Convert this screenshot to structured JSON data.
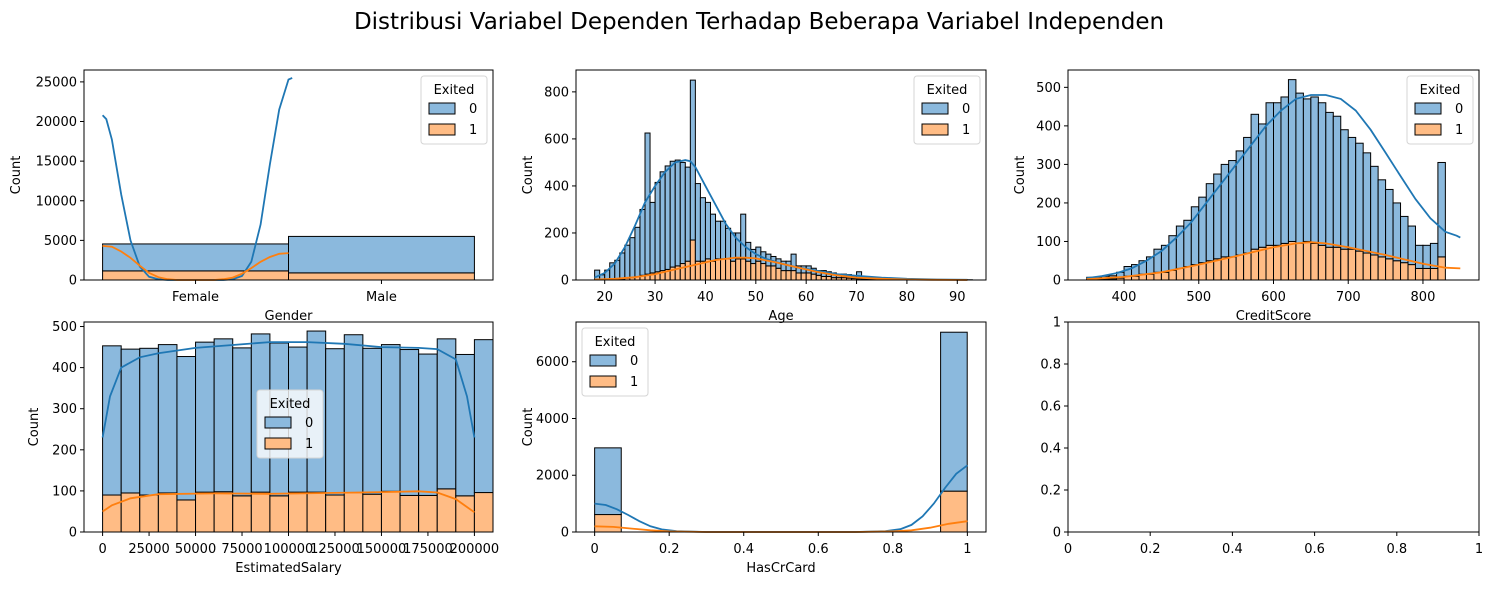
{
  "suptitle": "Distribusi Variabel Dependen Terhadap Beberapa Variabel Independen",
  "colors": {
    "exited_0": "#8bb9dd",
    "exited_1": "#ffbc85",
    "kde_0": "#1f77b4",
    "kde_1": "#ff7f0e"
  },
  "chart_data": [
    {
      "type": "bar",
      "subplot": "gender",
      "xlabel": "Gender",
      "ylabel": "Count",
      "categories": [
        "Female",
        "Male"
      ],
      "ylim": [
        0,
        26500
      ],
      "yticks": [
        0,
        5000,
        10000,
        15000,
        20000,
        25000
      ],
      "multiple": "stack",
      "series": [
        {
          "name": "0",
          "values": [
            3400,
            4600
          ]
        },
        {
          "name": "1",
          "values": [
            1150,
            900
          ]
        }
      ],
      "kde": [
        {
          "name": "0",
          "x": [
            -0.5,
            -0.48,
            -0.45,
            -0.4,
            -0.35,
            -0.3,
            -0.25,
            -0.2,
            -0.15,
            -0.1,
            -0.05,
            0.0,
            0.05,
            0.1,
            0.15,
            0.2,
            0.25,
            0.3,
            0.35,
            0.4,
            0.45,
            0.5,
            0.52
          ],
          "y": [
            20800,
            20300,
            17700,
            10800,
            5000,
            1700,
            400,
            100,
            0,
            0,
            0,
            0,
            0,
            0,
            0,
            100,
            500,
            2300,
            7000,
            14600,
            21500,
            25300,
            25500
          ]
        },
        {
          "name": "1",
          "x": [
            -0.5,
            -0.45,
            -0.4,
            -0.35,
            -0.3,
            -0.25,
            -0.2,
            -0.15,
            -0.1,
            0.0,
            0.1,
            0.15,
            0.2,
            0.25,
            0.3,
            0.35,
            0.4,
            0.45,
            0.5
          ],
          "y": [
            4300,
            4200,
            3600,
            2800,
            1800,
            900,
            350,
            100,
            0,
            0,
            0,
            100,
            300,
            800,
            1500,
            2300,
            2900,
            3300,
            3400
          ]
        }
      ],
      "legend": {
        "title": "Exited",
        "entries": [
          "0",
          "1"
        ],
        "loc": "upper right"
      }
    },
    {
      "type": "bar",
      "subplot": "age",
      "xlabel": "Age",
      "ylabel": "Count",
      "xlim": [
        14.3,
        95.7
      ],
      "xticks": [
        20,
        30,
        40,
        50,
        60,
        70,
        80,
        90
      ],
      "ylim": [
        0,
        893
      ],
      "yticks": [
        0,
        200,
        400,
        600,
        800
      ],
      "multiple": "stack",
      "bin_start": 18,
      "bin_width": 1,
      "series": [
        {
          "name": "0",
          "values": [
            40,
            20,
            40,
            70,
            80,
            110,
            140,
            170,
            210,
            280,
            600,
            300,
            380,
            420,
            440,
            450,
            450,
            430,
            400,
            680,
            330,
            270,
            240,
            200,
            160,
            160,
            130,
            120,
            110,
            190,
            80,
            60,
            60,
            50,
            50,
            40,
            40,
            40,
            40,
            70,
            30,
            30,
            30,
            25,
            20,
            25,
            20,
            20,
            15,
            15,
            15,
            10,
            30,
            10,
            8,
            8,
            7,
            6,
            5,
            4,
            4,
            3,
            3,
            3,
            2,
            2,
            2,
            1,
            1,
            1,
            1,
            1,
            1,
            1,
            1
          ]
        },
        {
          "name": "1",
          "values": [
            2,
            2,
            2,
            3,
            4,
            5,
            8,
            10,
            14,
            20,
            25,
            30,
            35,
            40,
            45,
            55,
            60,
            70,
            80,
            170,
            80,
            80,
            90,
            80,
            90,
            90,
            90,
            80,
            90,
            90,
            80,
            70,
            80,
            70,
            60,
            60,
            50,
            40,
            40,
            40,
            30,
            30,
            30,
            25,
            20,
            15,
            15,
            10,
            10,
            10,
            8,
            6,
            5,
            4,
            3,
            3,
            2,
            2,
            2,
            1,
            1,
            1,
            1,
            1,
            0,
            0,
            0,
            0,
            0,
            0,
            0,
            0,
            0,
            0,
            0
          ]
        }
      ],
      "kde": [
        {
          "name": "0",
          "x": [
            18,
            20,
            22,
            24,
            26,
            28,
            30,
            32,
            34,
            36,
            37,
            38,
            40,
            42,
            44,
            46,
            48,
            50,
            52,
            55,
            58,
            62,
            66,
            70,
            75,
            80,
            86,
            92
          ],
          "y": [
            10,
            30,
            70,
            140,
            230,
            330,
            400,
            460,
            500,
            510,
            505,
            480,
            400,
            320,
            240,
            180,
            140,
            110,
            90,
            70,
            55,
            40,
            25,
            18,
            10,
            5,
            2,
            1
          ]
        },
        {
          "name": "1",
          "x": [
            18,
            22,
            26,
            30,
            34,
            38,
            42,
            46,
            48,
            50,
            54,
            58,
            62,
            66,
            70,
            75,
            80,
            85,
            92
          ],
          "y": [
            2,
            5,
            12,
            25,
            45,
            65,
            85,
            95,
            95,
            92,
            75,
            55,
            35,
            20,
            10,
            5,
            2,
            1,
            0
          ]
        }
      ],
      "legend": {
        "title": "Exited",
        "entries": [
          "0",
          "1"
        ],
        "loc": "upper right"
      }
    },
    {
      "type": "bar",
      "subplot": "creditscore",
      "xlabel": "CreditScore",
      "ylabel": "Count",
      "xlim": [
        325,
        875
      ],
      "xticks": [
        400,
        500,
        600,
        700,
        800
      ],
      "ylim": [
        0,
        545
      ],
      "yticks": [
        0,
        100,
        200,
        300,
        400,
        500
      ],
      "multiple": "stack",
      "bin_start": 350,
      "bin_width": 10,
      "series": [
        {
          "name": "0",
          "values": [
            5,
            5,
            7,
            8,
            15,
            25,
            30,
            35,
            45,
            60,
            70,
            90,
            110,
            120,
            150,
            170,
            200,
            220,
            240,
            250,
            270,
            300,
            350,
            320,
            370,
            370,
            380,
            420,
            390,
            370,
            380,
            370,
            350,
            340,
            310,
            290,
            280,
            260,
            230,
            200,
            180,
            150,
            120,
            100,
            60,
            60,
            65,
            245
          ]
        },
        {
          "name": "1",
          "values": [
            2,
            2,
            3,
            3,
            5,
            10,
            10,
            15,
            15,
            20,
            20,
            25,
            30,
            35,
            40,
            45,
            50,
            55,
            60,
            60,
            65,
            70,
            80,
            85,
            90,
            90,
            95,
            100,
            95,
            100,
            95,
            90,
            85,
            85,
            80,
            80,
            75,
            70,
            65,
            60,
            55,
            50,
            45,
            40,
            30,
            30,
            30,
            60
          ]
        }
      ],
      "kde": [
        {
          "name": "0",
          "x": [
            350,
            370,
            390,
            410,
            430,
            450,
            470,
            490,
            510,
            530,
            550,
            570,
            590,
            610,
            630,
            650,
            670,
            690,
            710,
            730,
            750,
            770,
            790,
            810,
            830,
            845,
            850
          ],
          "y": [
            5,
            10,
            18,
            30,
            50,
            75,
            110,
            150,
            200,
            250,
            300,
            350,
            400,
            440,
            470,
            480,
            480,
            470,
            440,
            390,
            330,
            270,
            210,
            160,
            125,
            115,
            110
          ]
        },
        {
          "name": "1",
          "x": [
            350,
            400,
            450,
            500,
            550,
            600,
            630,
            650,
            670,
            700,
            750,
            800,
            830,
            850
          ],
          "y": [
            2,
            8,
            20,
            40,
            62,
            85,
            95,
            98,
            95,
            85,
            65,
            42,
            32,
            30
          ]
        }
      ],
      "legend": {
        "title": "Exited",
        "entries": [
          "0",
          "1"
        ],
        "loc": "upper right"
      }
    },
    {
      "type": "bar",
      "subplot": "estimatedsalary",
      "xlabel": "EstimatedSalary",
      "ylabel": "Count",
      "xlim": [
        -10000,
        210000
      ],
      "xticks": [
        0,
        25000,
        50000,
        75000,
        100000,
        125000,
        150000,
        175000,
        200000
      ],
      "ylim": [
        0,
        511
      ],
      "yticks": [
        0,
        100,
        200,
        300,
        400,
        500
      ],
      "multiple": "stack",
      "bin_start": 0,
      "bin_width": 10000,
      "series": [
        {
          "name": "0",
          "values": [
            363,
            350,
            357,
            361,
            349,
            365,
            372,
            360,
            385,
            372,
            353,
            392,
            356,
            384,
            355,
            357,
            355,
            344,
            365,
            344,
            372
          ]
        },
        {
          "name": "1",
          "values": [
            90,
            95,
            90,
            95,
            78,
            97,
            98,
            88,
            97,
            88,
            97,
            97,
            90,
            96,
            92,
            99,
            89,
            89,
            105,
            88,
            96
          ]
        }
      ],
      "kde": [
        {
          "name": "0",
          "x": [
            0,
            4000,
            10000,
            20000,
            30000,
            50000,
            70000,
            90000,
            110000,
            130000,
            150000,
            170000,
            180000,
            190000,
            196000,
            200000
          ],
          "y": [
            230,
            330,
            400,
            425,
            435,
            448,
            455,
            462,
            462,
            458,
            450,
            448,
            445,
            420,
            330,
            230
          ]
        },
        {
          "name": "1",
          "x": [
            0,
            5000,
            15000,
            30000,
            60000,
            90000,
            120000,
            150000,
            170000,
            180000,
            190000,
            200000
          ],
          "y": [
            50,
            65,
            82,
            92,
            94,
            93,
            95,
            97,
            99,
            96,
            80,
            48
          ]
        }
      ],
      "legend": {
        "title": "Exited",
        "entries": [
          "0",
          "1"
        ],
        "loc": "center"
      }
    },
    {
      "type": "bar",
      "subplot": "hascrcard",
      "xlabel": "HasCrCard",
      "ylabel": "Count",
      "xlim": [
        -0.05,
        1.05
      ],
      "xticks": [
        0.0,
        0.2,
        0.4,
        0.6,
        0.8,
        1.0
      ],
      "ylim": [
        0,
        7400
      ],
      "yticks": [
        0,
        2000,
        4000,
        6000
      ],
      "multiple": "stack",
      "bin_start": 0,
      "bin_width": 0.0714,
      "series": [
        {
          "name": "0",
          "values": [
            2350,
            0,
            0,
            0,
            0,
            0,
            0,
            0,
            0,
            0,
            0,
            0,
            0,
            5600
          ]
        },
        {
          "name": "1",
          "values": [
            615,
            0,
            0,
            0,
            0,
            0,
            0,
            0,
            0,
            0,
            0,
            0,
            0,
            1440
          ]
        }
      ],
      "kde": [
        {
          "name": "0",
          "x": [
            0,
            0.03,
            0.06,
            0.09,
            0.12,
            0.15,
            0.18,
            0.22,
            0.3,
            0.5,
            0.7,
            0.78,
            0.82,
            0.85,
            0.88,
            0.91,
            0.94,
            0.97,
            1.0
          ],
          "y": [
            1000,
            950,
            800,
            600,
            380,
            200,
            90,
            30,
            0,
            0,
            0,
            30,
            100,
            250,
            550,
            1000,
            1550,
            2050,
            2350
          ]
        },
        {
          "name": "1",
          "x": [
            0,
            0.05,
            0.1,
            0.15,
            0.2,
            0.3,
            0.5,
            0.7,
            0.8,
            0.85,
            0.9,
            0.95,
            1.0
          ],
          "y": [
            200,
            180,
            120,
            60,
            20,
            0,
            0,
            0,
            20,
            60,
            150,
            290,
            380
          ]
        }
      ],
      "legend": {
        "title": "Exited",
        "entries": [
          "0",
          "1"
        ],
        "loc": "upper left"
      }
    },
    {
      "type": "empty",
      "subplot": "blank",
      "xlim": [
        0,
        1
      ],
      "ylim": [
        0,
        1
      ],
      "xticks": [
        0.0,
        0.2,
        0.4,
        0.6,
        0.8,
        1.0
      ],
      "yticks": [
        0.0,
        0.2,
        0.4,
        0.6,
        0.8,
        1.0
      ]
    }
  ]
}
